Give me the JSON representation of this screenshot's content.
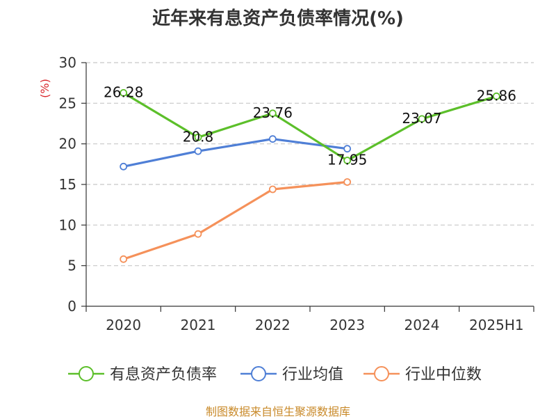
{
  "chart_data": {
    "type": "line",
    "title": "近年来有息资产负债率情况(%)",
    "unit_label": "(%)",
    "categories": [
      "2020",
      "2021",
      "2022",
      "2023",
      "2024",
      "2025H1"
    ],
    "ylim": [
      0,
      30
    ],
    "yticks": [
      0,
      5,
      10,
      15,
      20,
      25,
      30
    ],
    "grid": true,
    "legend_position": "bottom",
    "series": [
      {
        "name": "有息资产负债率",
        "color": "#5cbf2a",
        "values": [
          26.28,
          20.8,
          23.76,
          17.95,
          23.07,
          25.86
        ],
        "labels": [
          "26.28",
          "20.8",
          "23.76",
          "17.95",
          "23.07",
          "25.86"
        ]
      },
      {
        "name": "行业均值",
        "color": "#4f7fd6",
        "values": [
          17.2,
          19.1,
          20.6,
          19.4,
          null,
          null
        ]
      },
      {
        "name": "行业中位数",
        "color": "#f5915a",
        "values": [
          5.8,
          8.9,
          14.4,
          15.3,
          null,
          null
        ]
      }
    ]
  },
  "source": "制图数据来自恒生聚源数据库"
}
